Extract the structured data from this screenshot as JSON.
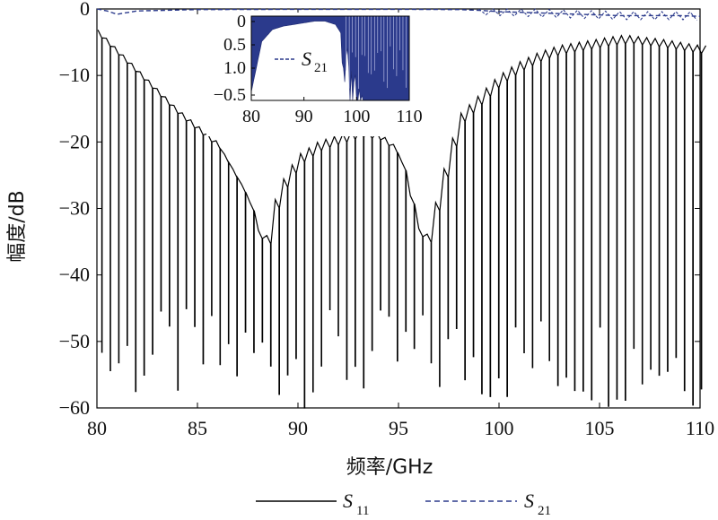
{
  "chart_data": [
    {
      "type": "line",
      "xlabel": "频率/GHz",
      "ylabel": "幅度/dB",
      "xlim": [
        80,
        110
      ],
      "ylim": [
        -60,
        0
      ],
      "xticks": [
        "80",
        "85",
        "90",
        "95",
        "100",
        "105",
        "110"
      ],
      "yticks": [
        "0",
        "−10",
        "−20",
        "−30",
        "−40",
        "−50",
        "−60"
      ],
      "legend_position": "bottom",
      "series": [
        {
          "name": "S11",
          "name_main": "S",
          "name_sub": "11",
          "style": "solid",
          "color": "#000000",
          "envelope_x": [
            80,
            82,
            84,
            86,
            87.5,
            88.3,
            89,
            90,
            91,
            92,
            93,
            94,
            95,
            96,
            96.5,
            97,
            98,
            99,
            100,
            101,
            102,
            103,
            104,
            105,
            106,
            106.5,
            107,
            108,
            109,
            110
          ],
          "envelope_y": [
            -3,
            -9,
            -15,
            -20,
            -28,
            -36,
            -27,
            -22,
            -20,
            -19,
            -18,
            -18.5,
            -21,
            -33,
            -34,
            -27,
            -16,
            -13,
            -10,
            -8,
            -6.5,
            -5.5,
            -5,
            -4.5,
            -4,
            -4,
            -4.2,
            -4.5,
            -5,
            -5.5
          ],
          "null_depth_range": [
            -60,
            -45
          ]
        },
        {
          "name": "S21",
          "name_main": "S",
          "name_sub": "21",
          "style": "dashed",
          "color": "#2b3a8c",
          "x": [
            80,
            80.5,
            81,
            82,
            85,
            90,
            95,
            98,
            99,
            100,
            101,
            102,
            103,
            104,
            105,
            106,
            107,
            108,
            109,
            110
          ],
          "y": [
            0,
            -0.3,
            -0.8,
            -0.3,
            -0.1,
            -0.05,
            -0.05,
            -0.1,
            -0.2,
            -0.4,
            -0.5,
            -0.6,
            -0.7,
            -0.8,
            -0.9,
            -1.0,
            -1.0,
            -1.0,
            -1.0,
            -1.1
          ]
        }
      ]
    },
    {
      "type": "area",
      "inset": true,
      "legend_position": "top-right",
      "xlim": [
        80,
        110
      ],
      "ylim": [
        -0.5,
        0
      ],
      "xticks": [
        "80",
        "90",
        "100",
        "110"
      ],
      "yticks": [
        "0",
        "0.5",
        "1.0",
        "−0.5"
      ],
      "series": [
        {
          "name": "S21",
          "name_main": "S",
          "name_sub": "21",
          "style": "dashed",
          "color": "#2b3a8c",
          "envelope_x": [
            80,
            82,
            84,
            86,
            88,
            90,
            92,
            94,
            96,
            98,
            100,
            102,
            104,
            106,
            108,
            110
          ],
          "envelope_y": [
            -0.45,
            -0.15,
            -0.08,
            -0.06,
            -0.05,
            -0.04,
            -0.03,
            -0.03,
            -0.05,
            -0.15,
            -0.35,
            -0.5,
            -0.5,
            -0.5,
            -0.5,
            -0.5
          ]
        }
      ]
    }
  ]
}
